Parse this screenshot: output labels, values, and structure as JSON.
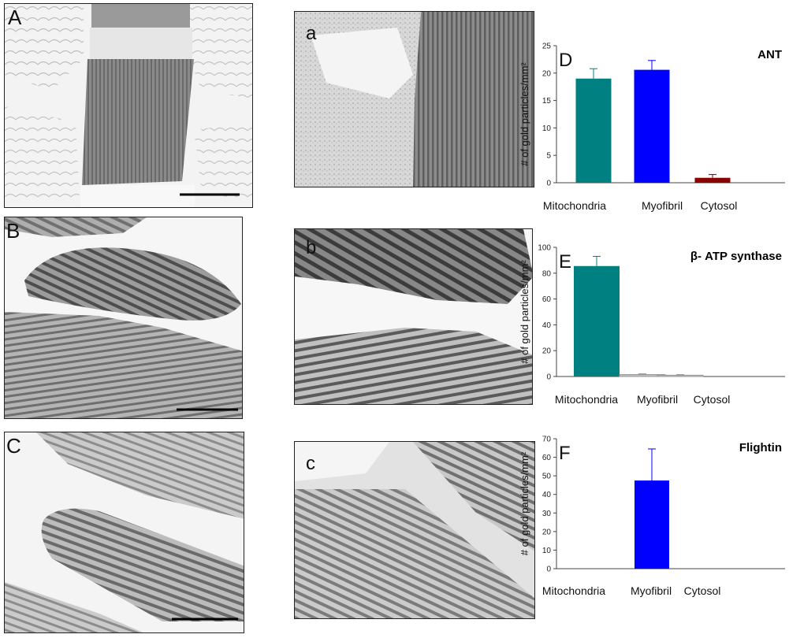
{
  "panel_labels": {
    "A": "A",
    "a": "a",
    "B": "B",
    "b": "b",
    "C": "C",
    "c": "c"
  },
  "chart_data": [
    {
      "type": "bar",
      "panel_label": "D",
      "title": "ANT",
      "ylabel": "# of gold particles/mm²",
      "categories": [
        "Mitochondria",
        "Myofibril",
        "Cytosol"
      ],
      "values": [
        19,
        20.6,
        0.9
      ],
      "errors": [
        1.8,
        1.7,
        0.6
      ],
      "bar_colors": [
        "#008080",
        "#0000ff",
        "#8b0000"
      ],
      "ylim": [
        0,
        25
      ],
      "yticks": [
        "0",
        "5",
        "10",
        "15",
        "20",
        "25"
      ],
      "grid": false
    },
    {
      "type": "bar",
      "panel_label": "E",
      "title": "β- ATP  synthase",
      "ylabel": "# of gold particles/mm²",
      "categories": [
        "Mitochondria",
        "Myofibril",
        "Cytosol"
      ],
      "values": [
        85.5,
        1.5,
        1.0
      ],
      "errors": [
        7.5,
        0.5,
        0.4
      ],
      "bar_colors": [
        "#008080",
        "#c0c0c0",
        "#c0c0c0"
      ],
      "ylim": [
        0,
        100
      ],
      "yticks": [
        "0",
        "20",
        "40",
        "60",
        "80",
        "100"
      ],
      "grid": false
    },
    {
      "type": "bar",
      "panel_label": "F",
      "title": "Flightin",
      "ylabel": "# of gold particles/mm²",
      "categories": [
        "Mitochondria",
        "Myofibril",
        "Cytosol"
      ],
      "values": [
        0,
        47.5,
        0
      ],
      "errors": [
        0,
        17,
        0
      ],
      "bar_colors": [
        "#008080",
        "#0000ff",
        "#8b0000"
      ],
      "ylim": [
        0,
        70
      ],
      "yticks": [
        "0",
        "10",
        "20",
        "30",
        "40",
        "50",
        "60",
        "70"
      ],
      "grid": false
    }
  ]
}
